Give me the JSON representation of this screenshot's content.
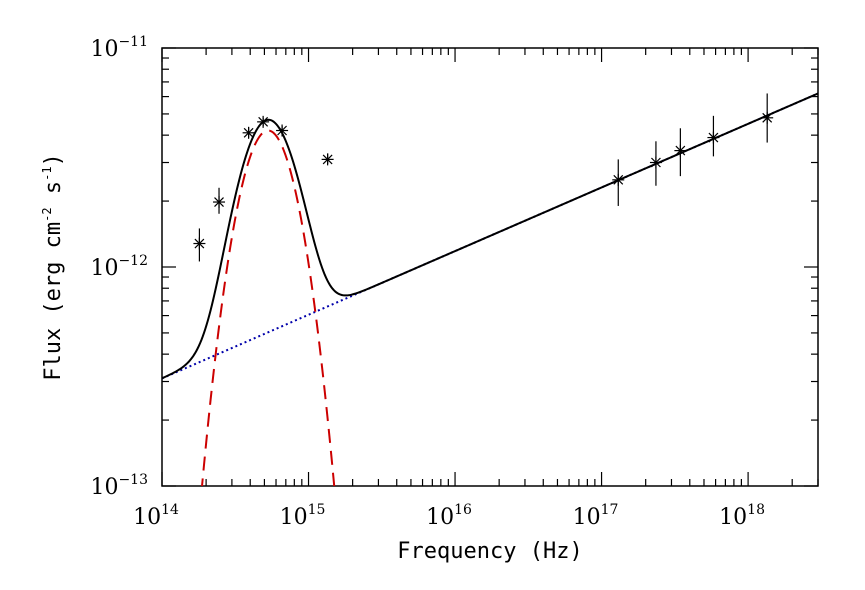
{
  "chart_data": {
    "type": "scatter",
    "title": "",
    "xlabel": "Frequency (Hz)",
    "ylabel_parts": [
      "Flux (erg cm",
      "-2",
      " s",
      "-1",
      ")"
    ],
    "x_scale": "log",
    "y_scale": "log",
    "xlim": [
      100000000000000.0,
      3e+18
    ],
    "ylim": [
      1e-13,
      1e-11
    ],
    "x_tick_labels": [
      {
        "value": 100000000000000.0,
        "base": "10",
        "exp": "14"
      },
      {
        "value": 1000000000000000.0,
        "base": "10",
        "exp": "15"
      },
      {
        "value": 1e+16,
        "base": "10",
        "exp": "16"
      },
      {
        "value": 1e+17,
        "base": "10",
        "exp": "17"
      },
      {
        "value": 1e+18,
        "base": "10",
        "exp": "18"
      }
    ],
    "y_tick_labels": [
      {
        "value": 1e-13,
        "base": "10",
        "exp": "−13"
      },
      {
        "value": 1e-12,
        "base": "10",
        "exp": "−12"
      },
      {
        "value": 1e-11,
        "base": "10",
        "exp": "−11"
      }
    ],
    "grid": false,
    "series": [
      {
        "name": "data",
        "kind": "points",
        "marker": "asterisk",
        "color": "#000000",
        "points": [
          {
            "x": 180000000000000.0,
            "y": 1.28e-12,
            "yerr_lo": 1.06e-12,
            "yerr_hi": 1.5e-12
          },
          {
            "x": 245000000000000.0,
            "y": 1.98e-12,
            "yerr_lo": 1.75e-12,
            "yerr_hi": 2.3e-12
          },
          {
            "x": 390000000000000.0,
            "y": 4.1e-12,
            "yerr_lo": 3.9e-12,
            "yerr_hi": 4.35e-12
          },
          {
            "x": 490000000000000.0,
            "y": 4.6e-12,
            "yerr_lo": 4.4e-12,
            "yerr_hi": 4.8e-12
          },
          {
            "x": 660000000000000.0,
            "y": 4.2e-12,
            "yerr_lo": 4e-12,
            "yerr_hi": 4.4e-12
          },
          {
            "x": 1350000000000000.0,
            "y": 3.1e-12,
            "yerr_lo": 2.95e-12,
            "yerr_hi": 3.3e-12
          },
          {
            "x": 1.3e+17,
            "y": 2.5e-12,
            "yerr_lo": 1.9e-12,
            "yerr_hi": 3.1e-12
          },
          {
            "x": 2.35e+17,
            "y": 3e-12,
            "yerr_lo": 2.35e-12,
            "yerr_hi": 3.75e-12
          },
          {
            "x": 3.45e+17,
            "y": 3.4e-12,
            "yerr_lo": 2.6e-12,
            "yerr_hi": 4.3e-12
          },
          {
            "x": 5.8e+17,
            "y": 3.9e-12,
            "yerr_lo": 3.2e-12,
            "yerr_hi": 4.9e-12
          },
          {
            "x": 1.35e+18,
            "y": 4.8e-12,
            "yerr_lo": 3.7e-12,
            "yerr_hi": 6.2e-12
          }
        ]
      },
      {
        "name": "thermal component",
        "kind": "line",
        "style": "dashed",
        "color": "#cc0000",
        "model": {
          "peak_x": 530000000000000.0,
          "peak_y": 4.2e-12,
          "log_sigma": 0.165
        }
      },
      {
        "name": "power-law component",
        "kind": "line",
        "style": "dotted",
        "color": "#0000aa",
        "model": {
          "x0": 100000000000000.0,
          "y0": 3.1e-13,
          "x1": 3e+18,
          "y1": 6.2e-12
        }
      },
      {
        "name": "total model",
        "kind": "line",
        "style": "solid",
        "color": "#000000",
        "model": "sum of thermal and power-law components"
      }
    ]
  }
}
